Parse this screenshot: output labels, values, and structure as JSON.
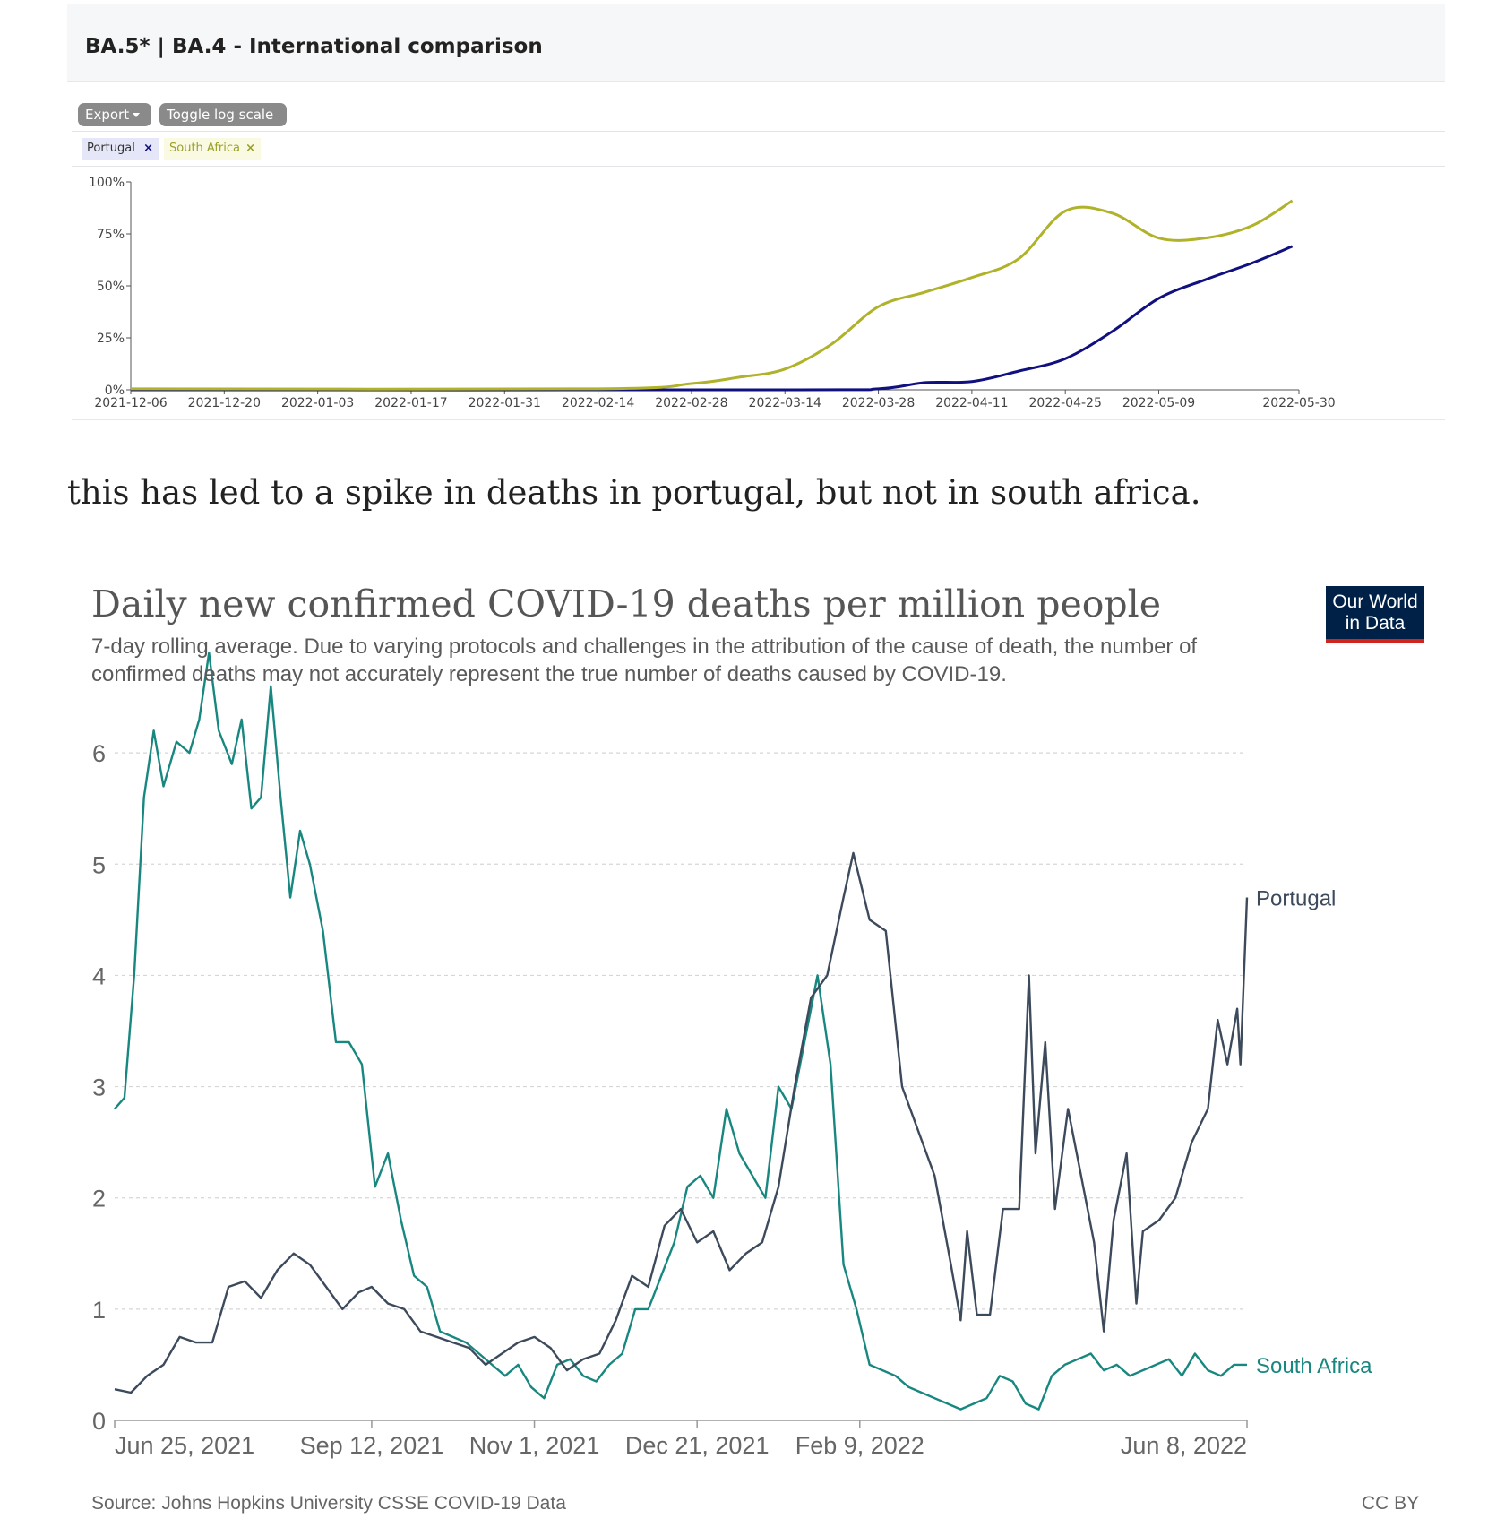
{
  "top_card": {
    "title": "BA.5* | BA.4 - International comparison",
    "export_label": "Export",
    "log_label": "Toggle log scale",
    "tags": [
      {
        "label": "Portugal",
        "remove": "×"
      },
      {
        "label": "South Africa",
        "remove": "×"
      }
    ]
  },
  "caption": "this has led to a spike in deaths in portugal, but not in south africa.",
  "owid": {
    "logo_line1": "Our World",
    "logo_line2": "in Data",
    "source": "Source: Johns Hopkins University CSSE COVID-19 Data",
    "license": "CC BY"
  },
  "chart_data": [
    {
      "type": "line",
      "title": "BA.5* | BA.4 - International comparison",
      "xlabel": "",
      "ylabel": "",
      "x_tick_labels": [
        "2021-12-06",
        "2021-12-20",
        "2022-01-03",
        "2022-01-17",
        "2022-01-31",
        "2022-02-14",
        "2022-02-28",
        "2022-03-14",
        "2022-03-28",
        "2022-04-11",
        "2022-04-25",
        "2022-05-09",
        "2022-05-30"
      ],
      "y_tick_labels": [
        "0%",
        "25%",
        "50%",
        "75%",
        "100%"
      ],
      "xlim": [
        "2021-12-06",
        "2022-05-30"
      ],
      "ylim": [
        0,
        100
      ],
      "legend": "top-left",
      "series": [
        {
          "name": "Portugal",
          "color": "#101080",
          "points": [
            [
              "2021-12-06",
              0
            ],
            [
              "2022-03-14",
              0
            ],
            [
              "2022-03-28",
              0.5
            ],
            [
              "2022-04-04",
              3.5
            ],
            [
              "2022-04-11",
              4
            ],
            [
              "2022-04-18",
              9
            ],
            [
              "2022-04-25",
              15
            ],
            [
              "2022-05-02",
              28
            ],
            [
              "2022-05-09",
              44
            ],
            [
              "2022-05-16",
              53
            ],
            [
              "2022-05-23",
              61
            ],
            [
              "2022-05-29",
              69
            ]
          ]
        },
        {
          "name": "South Africa",
          "color": "#b0b22a",
          "points": [
            [
              "2021-12-06",
              0.5
            ],
            [
              "2022-02-14",
              0.5
            ],
            [
              "2022-02-28",
              3
            ],
            [
              "2022-03-07",
              6
            ],
            [
              "2022-03-14",
              10
            ],
            [
              "2022-03-21",
              22
            ],
            [
              "2022-03-28",
              40
            ],
            [
              "2022-04-04",
              47
            ],
            [
              "2022-04-11",
              54
            ],
            [
              "2022-04-18",
              63
            ],
            [
              "2022-04-25",
              86
            ],
            [
              "2022-05-02",
              85
            ],
            [
              "2022-05-09",
              73
            ],
            [
              "2022-05-16",
              73
            ],
            [
              "2022-05-23",
              79
            ],
            [
              "2022-05-29",
              91
            ]
          ]
        }
      ]
    },
    {
      "type": "line",
      "title": "Daily new confirmed COVID-19 deaths per million people",
      "subtitle": "7-day rolling average. Due to varying protocols and challenges in the attribution of the cause of death, the number of confirmed deaths may not accurately represent the true number of deaths caused by COVID-19.",
      "xlabel": "",
      "ylabel": "",
      "x_tick_labels": [
        "Jun 25, 2021",
        "Sep 12, 2021",
        "Nov 1, 2021",
        "Dec 21, 2021",
        "Feb 9, 2022",
        "Jun 8, 2022"
      ],
      "y_tick_labels": [
        "0",
        "1",
        "2",
        "3",
        "4",
        "5",
        "6"
      ],
      "xlim": [
        "2021-06-25",
        "2022-06-08"
      ],
      "ylim": [
        0,
        7
      ],
      "grid": true,
      "legend": "labels at line ends",
      "series": [
        {
          "name": "Portugal",
          "color": "#3c4a5c",
          "points": [
            [
              "2021-06-25",
              0.28
            ],
            [
              "2021-06-30",
              0.25
            ],
            [
              "2021-07-05",
              0.4
            ],
            [
              "2021-07-10",
              0.5
            ],
            [
              "2021-07-15",
              0.75
            ],
            [
              "2021-07-20",
              0.7
            ],
            [
              "2021-07-25",
              0.7
            ],
            [
              "2021-07-30",
              1.2
            ],
            [
              "2021-08-04",
              1.25
            ],
            [
              "2021-08-09",
              1.1
            ],
            [
              "2021-08-14",
              1.35
            ],
            [
              "2021-08-19",
              1.5
            ],
            [
              "2021-08-24",
              1.4
            ],
            [
              "2021-08-29",
              1.2
            ],
            [
              "2021-09-03",
              1.0
            ],
            [
              "2021-09-08",
              1.15
            ],
            [
              "2021-09-12",
              1.2
            ],
            [
              "2021-09-17",
              1.05
            ],
            [
              "2021-09-22",
              1.0
            ],
            [
              "2021-09-27",
              0.8
            ],
            [
              "2021-10-02",
              0.75
            ],
            [
              "2021-10-07",
              0.7
            ],
            [
              "2021-10-12",
              0.65
            ],
            [
              "2021-10-17",
              0.5
            ],
            [
              "2021-10-22",
              0.6
            ],
            [
              "2021-10-27",
              0.7
            ],
            [
              "2021-11-01",
              0.75
            ],
            [
              "2021-11-06",
              0.65
            ],
            [
              "2021-11-11",
              0.45
            ],
            [
              "2021-11-16",
              0.55
            ],
            [
              "2021-11-21",
              0.6
            ],
            [
              "2021-11-26",
              0.9
            ],
            [
              "2021-12-01",
              1.3
            ],
            [
              "2021-12-06",
              1.2
            ],
            [
              "2021-12-11",
              1.75
            ],
            [
              "2021-12-16",
              1.9
            ],
            [
              "2021-12-21",
              1.6
            ],
            [
              "2021-12-26",
              1.7
            ],
            [
              "2021-12-31",
              1.35
            ],
            [
              "2022-01-05",
              1.5
            ],
            [
              "2022-01-10",
              1.6
            ],
            [
              "2022-01-15",
              2.1
            ],
            [
              "2022-01-20",
              3.0
            ],
            [
              "2022-01-25",
              3.8
            ],
            [
              "2022-01-30",
              4.0
            ],
            [
              "2022-02-04",
              4.7
            ],
            [
              "2022-02-07",
              5.1
            ],
            [
              "2022-02-12",
              4.5
            ],
            [
              "2022-02-17",
              4.4
            ],
            [
              "2022-02-22",
              3.0
            ],
            [
              "2022-02-27",
              2.6
            ],
            [
              "2022-03-04",
              2.2
            ],
            [
              "2022-03-09",
              1.4
            ],
            [
              "2022-03-12",
              0.9
            ],
            [
              "2022-03-14",
              1.7
            ],
            [
              "2022-03-17",
              0.95
            ],
            [
              "2022-03-21",
              0.95
            ],
            [
              "2022-03-25",
              1.9
            ],
            [
              "2022-03-30",
              1.9
            ],
            [
              "2022-04-02",
              4.0
            ],
            [
              "2022-04-04",
              2.4
            ],
            [
              "2022-04-07",
              3.4
            ],
            [
              "2022-04-10",
              1.9
            ],
            [
              "2022-04-14",
              2.8
            ],
            [
              "2022-04-18",
              2.2
            ],
            [
              "2022-04-22",
              1.6
            ],
            [
              "2022-04-25",
              0.8
            ],
            [
              "2022-04-28",
              1.8
            ],
            [
              "2022-05-02",
              2.4
            ],
            [
              "2022-05-05",
              1.05
            ],
            [
              "2022-05-07",
              1.7
            ],
            [
              "2022-05-12",
              1.8
            ],
            [
              "2022-05-17",
              2.0
            ],
            [
              "2022-05-22",
              2.5
            ],
            [
              "2022-05-27",
              2.8
            ],
            [
              "2022-05-30",
              3.6
            ],
            [
              "2022-06-02",
              3.2
            ],
            [
              "2022-06-05",
              3.7
            ],
            [
              "2022-06-06",
              3.2
            ],
            [
              "2022-06-08",
              4.7
            ]
          ]
        },
        {
          "name": "South Africa",
          "color": "#18877f",
          "points": [
            [
              "2021-06-25",
              2.8
            ],
            [
              "2021-06-28",
              2.9
            ],
            [
              "2021-07-01",
              4.0
            ],
            [
              "2021-07-04",
              5.6
            ],
            [
              "2021-07-07",
              6.2
            ],
            [
              "2021-07-10",
              5.7
            ],
            [
              "2021-07-14",
              6.1
            ],
            [
              "2021-07-18",
              6.0
            ],
            [
              "2021-07-21",
              6.3
            ],
            [
              "2021-07-24",
              6.9
            ],
            [
              "2021-07-27",
              6.2
            ],
            [
              "2021-07-31",
              5.9
            ],
            [
              "2021-08-03",
              6.3
            ],
            [
              "2021-08-06",
              5.5
            ],
            [
              "2021-08-09",
              5.6
            ],
            [
              "2021-08-12",
              6.6
            ],
            [
              "2021-08-15",
              5.6
            ],
            [
              "2021-08-18",
              4.7
            ],
            [
              "2021-08-21",
              5.3
            ],
            [
              "2021-08-24",
              5.0
            ],
            [
              "2021-08-28",
              4.4
            ],
            [
              "2021-09-01",
              3.4
            ],
            [
              "2021-09-05",
              3.4
            ],
            [
              "2021-09-09",
              3.2
            ],
            [
              "2021-09-13",
              2.1
            ],
            [
              "2021-09-17",
              2.4
            ],
            [
              "2021-09-21",
              1.8
            ],
            [
              "2021-09-25",
              1.3
            ],
            [
              "2021-09-29",
              1.2
            ],
            [
              "2021-10-03",
              0.8
            ],
            [
              "2021-10-07",
              0.75
            ],
            [
              "2021-10-11",
              0.7
            ],
            [
              "2021-10-15",
              0.6
            ],
            [
              "2021-10-19",
              0.5
            ],
            [
              "2021-10-23",
              0.4
            ],
            [
              "2021-10-27",
              0.5
            ],
            [
              "2021-10-31",
              0.3
            ],
            [
              "2021-11-04",
              0.2
            ],
            [
              "2021-11-08",
              0.5
            ],
            [
              "2021-11-12",
              0.55
            ],
            [
              "2021-11-16",
              0.4
            ],
            [
              "2021-11-20",
              0.35
            ],
            [
              "2021-11-24",
              0.5
            ],
            [
              "2021-11-28",
              0.6
            ],
            [
              "2021-12-02",
              1.0
            ],
            [
              "2021-12-06",
              1.0
            ],
            [
              "2021-12-10",
              1.3
            ],
            [
              "2021-12-14",
              1.6
            ],
            [
              "2021-12-18",
              2.1
            ],
            [
              "2021-12-22",
              2.2
            ],
            [
              "2021-12-26",
              2.0
            ],
            [
              "2021-12-30",
              2.8
            ],
            [
              "2022-01-03",
              2.4
            ],
            [
              "2022-01-07",
              2.2
            ],
            [
              "2022-01-11",
              2.0
            ],
            [
              "2022-01-15",
              3.0
            ],
            [
              "2022-01-19",
              2.8
            ],
            [
              "2022-01-23",
              3.4
            ],
            [
              "2022-01-27",
              4.0
            ],
            [
              "2022-01-31",
              3.2
            ],
            [
              "2022-02-04",
              1.4
            ],
            [
              "2022-02-08",
              1.0
            ],
            [
              "2022-02-12",
              0.5
            ],
            [
              "2022-02-16",
              0.45
            ],
            [
              "2022-02-20",
              0.4
            ],
            [
              "2022-02-24",
              0.3
            ],
            [
              "2022-02-28",
              0.25
            ],
            [
              "2022-03-04",
              0.2
            ],
            [
              "2022-03-08",
              0.15
            ],
            [
              "2022-03-12",
              0.1
            ],
            [
              "2022-03-16",
              0.15
            ],
            [
              "2022-03-20",
              0.2
            ],
            [
              "2022-03-24",
              0.4
            ],
            [
              "2022-03-28",
              0.35
            ],
            [
              "2022-04-01",
              0.15
            ],
            [
              "2022-04-05",
              0.1
            ],
            [
              "2022-04-09",
              0.4
            ],
            [
              "2022-04-13",
              0.5
            ],
            [
              "2022-04-17",
              0.55
            ],
            [
              "2022-04-21",
              0.6
            ],
            [
              "2022-04-25",
              0.45
            ],
            [
              "2022-04-29",
              0.5
            ],
            [
              "2022-05-03",
              0.4
            ],
            [
              "2022-05-07",
              0.45
            ],
            [
              "2022-05-11",
              0.5
            ],
            [
              "2022-05-15",
              0.55
            ],
            [
              "2022-05-19",
              0.4
            ],
            [
              "2022-05-23",
              0.6
            ],
            [
              "2022-05-27",
              0.45
            ],
            [
              "2022-05-31",
              0.4
            ],
            [
              "2022-06-04",
              0.5
            ],
            [
              "2022-06-08",
              0.5
            ]
          ]
        }
      ]
    }
  ]
}
